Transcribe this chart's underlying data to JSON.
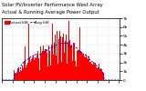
{
  "title_line1": "Solar PV/Inverter Performance West Array",
  "title_line2": "Actual & Running Average Power Output",
  "bg_color": "#ffffff",
  "plot_bg": "#ffffff",
  "grid_color": "#bbbbbb",
  "bar_color": "#ff0000",
  "avg_color": "#0000dd",
  "num_points": 144,
  "ylim": [
    0,
    7000
  ],
  "yticks": [
    0,
    1000,
    2000,
    3000,
    4000,
    5000,
    6000,
    7000
  ],
  "ytick_labels": [
    "0",
    "1k",
    "2k",
    "3k",
    "4k",
    "5k",
    "6k",
    "7k"
  ],
  "title_fontsize": 3.8,
  "tick_fontsize": 3.2,
  "legend_fontsize": 3.0,
  "legend_label1": "Actual kW",
  "legend_label2": "Avg kW"
}
